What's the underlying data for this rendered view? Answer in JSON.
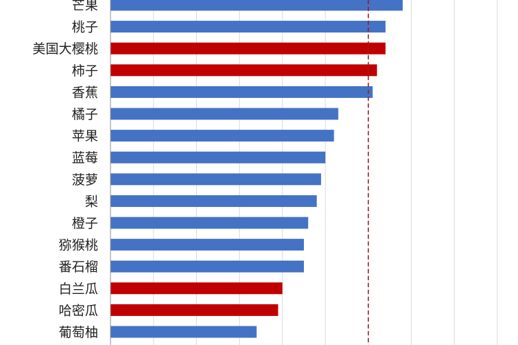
{
  "chart_data": {
    "type": "bar",
    "orientation": "horizontal",
    "categories": [
      "芒果",
      "桃子",
      "美国大樱桃",
      "柿子",
      "香蕉",
      "橘子",
      "苹果",
      "蓝莓",
      "菠萝",
      "梨",
      "橙子",
      "猕猴桃",
      "番石榴",
      "白兰瓜",
      "哈密瓜",
      "葡萄柚"
    ],
    "values": [
      68,
      64,
      64,
      62,
      61,
      53,
      52,
      50,
      49,
      48,
      46,
      45,
      45,
      40,
      39,
      34
    ],
    "highlighted": [
      false,
      false,
      true,
      true,
      false,
      false,
      false,
      false,
      false,
      false,
      false,
      false,
      false,
      true,
      true,
      false
    ],
    "reference_line": 60,
    "xlim": [
      0,
      90
    ],
    "grid": true,
    "colors": {
      "bar": "#4472c4",
      "bar_highlight": "#c00000",
      "reference_line": "#9e1b1b",
      "grid": "#d9d9d9",
      "axis": "#8c8c8c"
    }
  }
}
